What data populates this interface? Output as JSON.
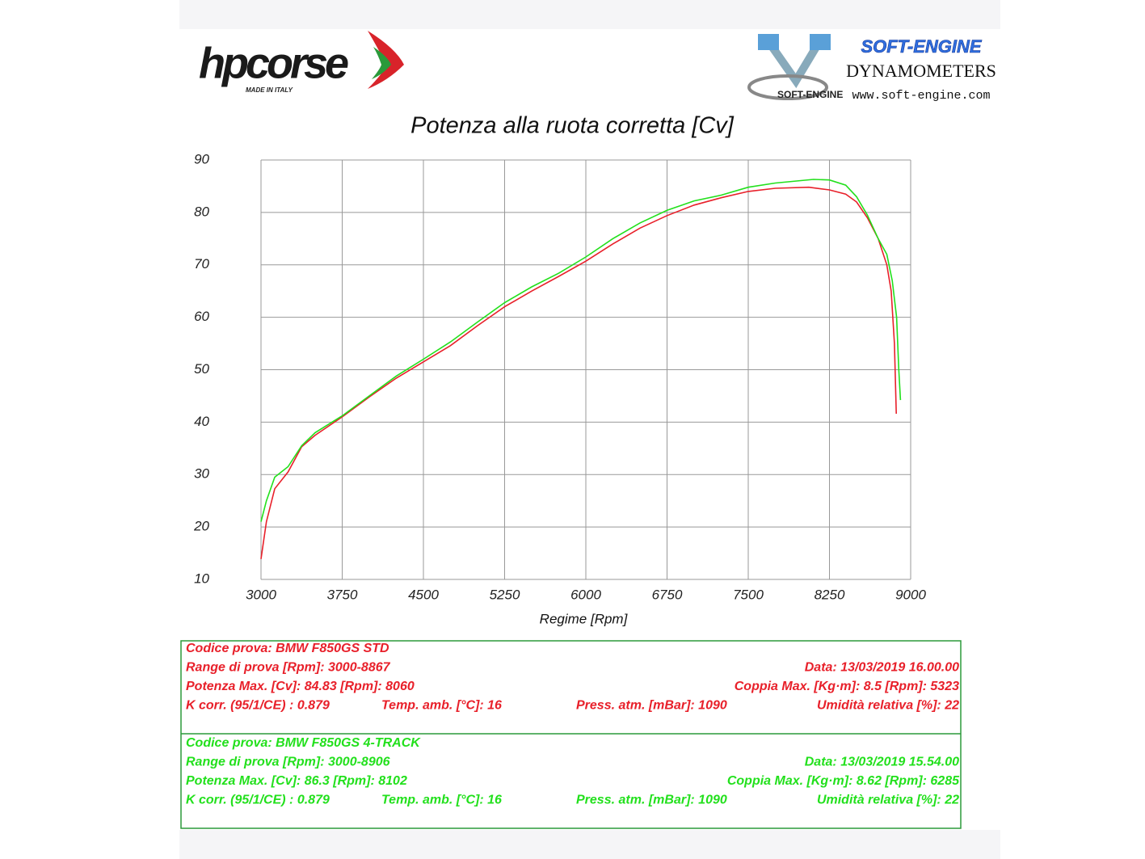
{
  "header": {
    "brand": "hpcorse",
    "brand_tagline": "MADE IN ITALY",
    "dyno_brand": "SOFT-ENGINE",
    "dyno_subtitle": "DYNAMOMETERS",
    "dyno_logo_text": "SOFT-ENGINE",
    "dyno_url": "www.soft-engine.com"
  },
  "chart_data": {
    "type": "line",
    "title": "Potenza alla ruota corretta [Cv]",
    "x_label": "Regime [Rpm]",
    "xlim": [
      3000,
      9000
    ],
    "xticks": [
      3000,
      3750,
      4500,
      5250,
      6000,
      6750,
      7500,
      8250,
      9000
    ],
    "ylim": [
      10,
      90
    ],
    "yticks": [
      10,
      20,
      30,
      40,
      50,
      60,
      70,
      80,
      90
    ],
    "grid": true,
    "series": [
      {
        "name": "BMW F850GS STD",
        "color": "#e8202a",
        "x": [
          3000,
          3050,
          3127,
          3250,
          3375,
          3500,
          3750,
          4000,
          4250,
          4500,
          4750,
          5000,
          5250,
          5500,
          5750,
          6000,
          6250,
          6500,
          6750,
          7000,
          7250,
          7500,
          7750,
          8060,
          8250,
          8400,
          8500,
          8600,
          8700,
          8780,
          8820,
          8850,
          8867
        ],
        "values": [
          13.9,
          21,
          27.3,
          30.5,
          35.3,
          37.5,
          41.0,
          44.8,
          48.4,
          51.5,
          54.6,
          58.4,
          62.0,
          65,
          67.8,
          70.7,
          74,
          77,
          79.4,
          81.4,
          82.8,
          84.0,
          84.6,
          84.8,
          84.3,
          83.5,
          82,
          79,
          75,
          70,
          65,
          55,
          41.6
        ]
      },
      {
        "name": "BMW F850GS 4-TRACK",
        "color": "#22e01c",
        "x": [
          3000,
          3050,
          3127,
          3250,
          3375,
          3500,
          3750,
          4000,
          4250,
          4500,
          4750,
          5000,
          5250,
          5500,
          5750,
          6000,
          6250,
          6500,
          6750,
          7000,
          7250,
          7500,
          7750,
          8102,
          8250,
          8400,
          8500,
          8600,
          8700,
          8780,
          8830,
          8870,
          8890,
          8906
        ],
        "values": [
          21,
          25,
          29.5,
          31.5,
          35.5,
          38,
          41.2,
          45,
          48.8,
          52,
          55.3,
          59.1,
          62.8,
          65.8,
          68.4,
          71.5,
          75,
          78,
          80.4,
          82.2,
          83.3,
          84.8,
          85.6,
          86.3,
          86.2,
          85.2,
          83,
          79.5,
          75,
          72,
          67,
          60,
          50,
          44.2
        ]
      }
    ]
  },
  "tests": [
    {
      "color": "#e8202a",
      "rows": [
        [
          "Codice prova: BMW F850GS STD"
        ],
        [
          "Range di prova [Rpm]: 3000-8867",
          "Data: 13/03/2019   16.00.00"
        ],
        [
          "Potenza Max. [Cv]: 84.83   [Rpm]: 8060",
          "Coppia Max. [Kg·m]: 8.5   [Rpm]: 5323"
        ],
        [
          "K corr. (95/1/CE) : 0.879",
          "Temp. amb. [°C]: 16",
          "Press. atm. [mBar]: 1090",
          "Umidità relativa [%]: 22"
        ]
      ]
    },
    {
      "color": "#22e01c",
      "rows": [
        [
          "Codice prova: BMW F850GS 4-TRACK"
        ],
        [
          "Range di prova [Rpm]: 3000-8906",
          "Data: 13/03/2019   15.54.00"
        ],
        [
          "Potenza Max. [Cv]: 86.3   [Rpm]: 8102",
          "Coppia Max. [Kg·m]: 8.62   [Rpm]: 6285"
        ],
        [
          "K corr. (95/1/CE) : 0.879",
          "Temp. amb. [°C]: 16",
          "Press. atm. [mBar]: 1090",
          "Umidità relativa [%]: 22"
        ]
      ]
    }
  ]
}
